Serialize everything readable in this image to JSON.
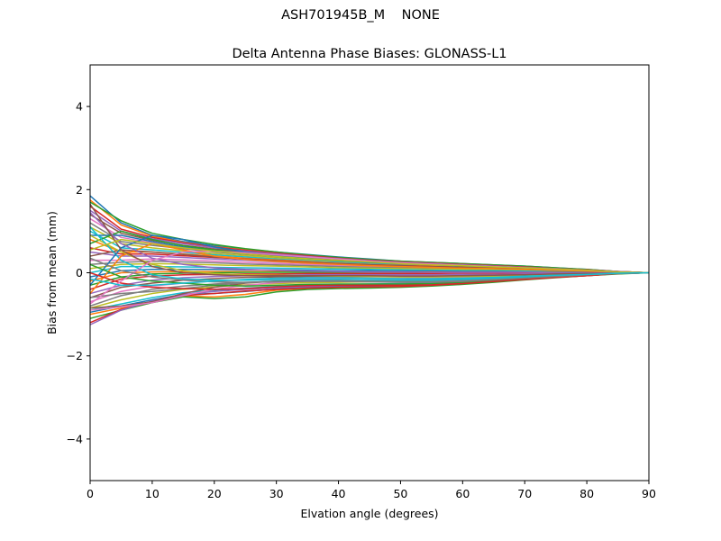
{
  "figure": {
    "suptitle": "ASH701945B_M    NONE"
  },
  "chart_data": {
    "type": "line",
    "title": "Delta Antenna Phase Biases: GLONASS-L1",
    "xlabel": "Elvation angle (degrees)",
    "ylabel": "Bias from mean (mm)",
    "xlim": [
      0,
      90
    ],
    "ylim": [
      -5,
      5
    ],
    "xticks": [
      0,
      10,
      20,
      30,
      40,
      50,
      60,
      70,
      80,
      90
    ],
    "yticks": [
      -4,
      -2,
      0,
      2,
      4
    ],
    "xtick_labels": [
      "0",
      "10",
      "20",
      "30",
      "40",
      "50",
      "60",
      "70",
      "80",
      "90"
    ],
    "ytick_labels": [
      "−4",
      "−2",
      "0",
      "2",
      "4"
    ],
    "grid": false,
    "x": [
      0,
      5,
      10,
      15,
      20,
      25,
      30,
      35,
      40,
      45,
      50,
      55,
      60,
      65,
      70,
      75,
      80,
      85,
      90
    ],
    "colors": [
      "#1f77b4",
      "#ff7f0e",
      "#2ca02c",
      "#d62728",
      "#9467bd",
      "#8c564b",
      "#e377c2",
      "#7f7f7f",
      "#bcbd22",
      "#17becf"
    ],
    "series": [
      {
        "values": [
          1.85,
          1.2,
          0.9,
          0.75,
          0.65,
          0.57,
          0.5,
          0.44,
          0.38,
          0.33,
          0.28,
          0.25,
          0.22,
          0.19,
          0.16,
          0.12,
          0.08,
          0.03,
          0.0
        ]
      },
      {
        "values": [
          1.75,
          1.15,
          0.88,
          0.73,
          0.63,
          0.55,
          0.48,
          0.42,
          0.36,
          0.31,
          0.27,
          0.24,
          0.21,
          0.18,
          0.15,
          0.11,
          0.07,
          0.03,
          0.0
        ]
      },
      {
        "values": [
          1.7,
          1.25,
          0.95,
          0.8,
          0.68,
          0.58,
          0.5,
          0.43,
          0.37,
          0.32,
          0.28,
          0.25,
          0.22,
          0.19,
          0.16,
          0.12,
          0.08,
          0.03,
          0.0
        ]
      },
      {
        "values": [
          1.6,
          1.05,
          0.85,
          0.72,
          0.62,
          0.54,
          0.47,
          0.41,
          0.35,
          0.3,
          0.26,
          0.23,
          0.2,
          0.17,
          0.14,
          0.1,
          0.07,
          0.03,
          0.0
        ]
      },
      {
        "values": [
          1.5,
          1.0,
          0.82,
          0.7,
          0.6,
          0.52,
          0.45,
          0.39,
          0.34,
          0.29,
          0.25,
          0.22,
          0.19,
          0.16,
          0.13,
          0.1,
          0.06,
          0.03,
          0.0
        ]
      },
      {
        "values": [
          1.4,
          0.95,
          0.78,
          0.66,
          0.57,
          0.5,
          0.43,
          0.37,
          0.32,
          0.28,
          0.24,
          0.21,
          0.18,
          0.15,
          0.12,
          0.09,
          0.06,
          0.02,
          0.0
        ]
      },
      {
        "values": [
          1.3,
          0.85,
          0.72,
          0.62,
          0.54,
          0.47,
          0.41,
          0.35,
          0.3,
          0.26,
          0.22,
          0.2,
          0.17,
          0.14,
          0.12,
          0.09,
          0.06,
          0.02,
          0.0
        ]
      },
      {
        "values": [
          1.2,
          0.75,
          0.66,
          0.58,
          0.5,
          0.44,
          0.38,
          0.33,
          0.28,
          0.24,
          0.21,
          0.19,
          0.16,
          0.14,
          0.11,
          0.08,
          0.05,
          0.02,
          0.0
        ]
      },
      {
        "values": [
          1.1,
          0.7,
          0.6,
          0.53,
          0.46,
          0.41,
          0.36,
          0.31,
          0.27,
          0.23,
          0.2,
          0.18,
          0.15,
          0.13,
          0.11,
          0.08,
          0.05,
          0.02,
          0.0
        ]
      },
      {
        "values": [
          1.0,
          0.6,
          0.55,
          0.49,
          0.43,
          0.38,
          0.33,
          0.29,
          0.25,
          0.22,
          0.19,
          0.17,
          0.14,
          0.12,
          0.1,
          0.07,
          0.05,
          0.02,
          0.0
        ]
      },
      {
        "values": [
          0.9,
          0.9,
          0.75,
          0.62,
          0.52,
          0.45,
          0.39,
          0.34,
          0.29,
          0.25,
          0.22,
          0.19,
          0.17,
          0.14,
          0.12,
          0.09,
          0.06,
          0.02,
          0.0
        ]
      },
      {
        "values": [
          0.8,
          0.5,
          0.5,
          0.45,
          0.4,
          0.35,
          0.31,
          0.27,
          0.23,
          0.2,
          0.18,
          0.16,
          0.13,
          0.11,
          0.09,
          0.07,
          0.04,
          0.02,
          0.0
        ]
      },
      {
        "values": [
          0.7,
          1.0,
          0.8,
          0.65,
          0.55,
          0.47,
          0.41,
          0.35,
          0.3,
          0.26,
          0.23,
          0.2,
          0.17,
          0.15,
          0.12,
          0.09,
          0.06,
          0.02,
          0.0
        ]
      },
      {
        "values": [
          0.6,
          0.45,
          0.45,
          0.41,
          0.37,
          0.33,
          0.29,
          0.25,
          0.22,
          0.19,
          0.17,
          0.15,
          0.13,
          0.11,
          0.09,
          0.06,
          0.04,
          0.02,
          0.0
        ]
      },
      {
        "values": [
          0.5,
          0.4,
          0.4,
          0.37,
          0.33,
          0.3,
          0.26,
          0.23,
          0.2,
          0.18,
          0.16,
          0.14,
          0.12,
          0.1,
          0.08,
          0.06,
          0.04,
          0.02,
          0.0
        ]
      },
      {
        "values": [
          0.4,
          0.55,
          0.5,
          0.44,
          0.38,
          0.33,
          0.29,
          0.25,
          0.22,
          0.19,
          0.17,
          0.15,
          0.13,
          0.11,
          0.09,
          0.06,
          0.04,
          0.02,
          0.0
        ]
      },
      {
        "values": [
          0.3,
          0.3,
          0.33,
          0.31,
          0.28,
          0.25,
          0.22,
          0.2,
          0.17,
          0.15,
          0.13,
          0.12,
          0.1,
          0.09,
          0.07,
          0.05,
          0.03,
          0.01,
          0.0
        ]
      },
      {
        "values": [
          0.2,
          0.25,
          0.28,
          0.26,
          0.24,
          0.21,
          0.19,
          0.17,
          0.15,
          0.13,
          0.12,
          0.1,
          0.09,
          0.08,
          0.06,
          0.05,
          0.03,
          0.01,
          0.0
        ]
      },
      {
        "values": [
          0.1,
          0.2,
          0.22,
          0.21,
          0.19,
          0.17,
          0.16,
          0.14,
          0.12,
          0.11,
          0.1,
          0.09,
          0.08,
          0.07,
          0.05,
          0.04,
          0.03,
          0.01,
          0.0
        ]
      },
      {
        "values": [
          0.0,
          0.15,
          0.15,
          0.14,
          0.13,
          0.12,
          0.11,
          0.1,
          0.09,
          0.08,
          0.07,
          0.06,
          0.05,
          0.05,
          0.04,
          0.03,
          0.02,
          0.01,
          0.0
        ]
      },
      {
        "values": [
          -0.1,
          0.05,
          0.08,
          0.08,
          0.08,
          0.07,
          0.07,
          0.06,
          0.05,
          0.05,
          0.04,
          0.04,
          0.03,
          0.03,
          0.02,
          0.02,
          0.01,
          0.0,
          0.0
        ]
      },
      {
        "values": [
          -0.2,
          0.0,
          0.02,
          0.03,
          0.03,
          0.03,
          0.03,
          0.03,
          0.02,
          0.02,
          0.02,
          0.02,
          0.01,
          0.01,
          0.01,
          0.01,
          0.0,
          0.0,
          0.0
        ]
      },
      {
        "values": [
          -0.3,
          -0.1,
          -0.03,
          -0.01,
          0.0,
          0.01,
          0.01,
          0.01,
          0.01,
          0.01,
          0.01,
          0.0,
          0.0,
          0.0,
          0.0,
          0.0,
          0.0,
          0.0,
          0.0
        ]
      },
      {
        "values": [
          -0.4,
          -0.15,
          -0.08,
          -0.05,
          -0.04,
          -0.03,
          -0.03,
          -0.02,
          -0.02,
          -0.02,
          -0.02,
          -0.02,
          -0.01,
          -0.01,
          -0.01,
          -0.01,
          0.0,
          0.0,
          0.0
        ]
      },
      {
        "values": [
          -0.5,
          -0.3,
          -0.18,
          -0.12,
          -0.09,
          -0.07,
          -0.06,
          -0.05,
          -0.05,
          -0.05,
          -0.05,
          -0.05,
          -0.04,
          -0.04,
          -0.03,
          -0.02,
          -0.01,
          0.0,
          0.0
        ]
      },
      {
        "values": [
          -0.6,
          -0.35,
          -0.25,
          -0.18,
          -0.14,
          -0.11,
          -0.1,
          -0.09,
          -0.09,
          -0.09,
          -0.09,
          -0.08,
          -0.07,
          -0.06,
          -0.05,
          -0.03,
          -0.02,
          -0.01,
          0.0
        ]
      },
      {
        "values": [
          -0.7,
          -0.45,
          -0.32,
          -0.25,
          -0.2,
          -0.17,
          -0.15,
          -0.14,
          -0.13,
          -0.13,
          -0.13,
          -0.12,
          -0.11,
          -0.09,
          -0.07,
          -0.05,
          -0.03,
          -0.01,
          0.0
        ]
      },
      {
        "values": [
          -0.8,
          -0.55,
          -0.4,
          -0.32,
          -0.27,
          -0.23,
          -0.21,
          -0.19,
          -0.18,
          -0.18,
          -0.17,
          -0.16,
          -0.14,
          -0.12,
          -0.09,
          -0.06,
          -0.04,
          -0.01,
          0.0
        ]
      },
      {
        "values": [
          -0.85,
          -0.65,
          -0.5,
          -0.4,
          -0.34,
          -0.29,
          -0.26,
          -0.24,
          -0.23,
          -0.22,
          -0.21,
          -0.19,
          -0.17,
          -0.14,
          -0.11,
          -0.08,
          -0.05,
          -0.02,
          0.0
        ]
      },
      {
        "values": [
          -0.9,
          -0.75,
          -0.6,
          -0.48,
          -0.42,
          -0.37,
          -0.33,
          -0.3,
          -0.28,
          -0.27,
          -0.26,
          -0.24,
          -0.21,
          -0.17,
          -0.13,
          -0.09,
          -0.06,
          -0.02,
          0.0
        ]
      },
      {
        "values": [
          -0.95,
          -0.8,
          -0.65,
          -0.52,
          -0.5,
          -0.45,
          -0.39,
          -0.35,
          -0.33,
          -0.31,
          -0.3,
          -0.28,
          -0.24,
          -0.2,
          -0.15,
          -0.1,
          -0.06,
          -0.02,
          0.0
        ]
      },
      {
        "values": [
          -1.0,
          -0.85,
          -0.7,
          -0.56,
          -0.58,
          -0.52,
          -0.42,
          -0.38,
          -0.36,
          -0.35,
          -0.33,
          -0.3,
          -0.26,
          -0.21,
          -0.16,
          -0.11,
          -0.07,
          -0.02,
          0.0
        ]
      },
      {
        "values": [
          -1.1,
          -0.9,
          -0.72,
          -0.58,
          -0.62,
          -0.58,
          -0.46,
          -0.4,
          -0.38,
          -0.37,
          -0.35,
          -0.32,
          -0.28,
          -0.23,
          -0.17,
          -0.12,
          -0.07,
          -0.03,
          0.0
        ]
      },
      {
        "values": [
          -1.2,
          -0.88,
          -0.7,
          -0.55,
          -0.5,
          -0.44,
          -0.4,
          -0.37,
          -0.35,
          -0.34,
          -0.33,
          -0.3,
          -0.26,
          -0.21,
          -0.16,
          -0.11,
          -0.07,
          -0.02,
          0.0
        ]
      },
      {
        "values": [
          -1.25,
          -0.9,
          -0.68,
          -0.52,
          -0.45,
          -0.4,
          -0.36,
          -0.33,
          -0.31,
          -0.3,
          -0.29,
          -0.27,
          -0.23,
          -0.19,
          -0.15,
          -0.1,
          -0.06,
          -0.02,
          0.0
        ]
      },
      {
        "values": [
          -0.85,
          -0.8,
          -0.7,
          -0.5,
          -0.35,
          -0.25,
          -0.2,
          -0.17,
          -0.16,
          -0.17,
          -0.18,
          -0.18,
          -0.16,
          -0.13,
          -0.1,
          -0.07,
          -0.04,
          -0.01,
          0.0
        ]
      },
      {
        "values": [
          -0.9,
          -0.82,
          -0.72,
          -0.55,
          -0.4,
          -0.3,
          -0.24,
          -0.2,
          -0.19,
          -0.2,
          -0.22,
          -0.22,
          -0.19,
          -0.15,
          -0.11,
          -0.08,
          -0.05,
          -0.02,
          0.0
        ]
      },
      {
        "values": [
          -0.6,
          -0.5,
          -0.45,
          -0.38,
          -0.3,
          -0.24,
          -0.2,
          -0.18,
          -0.18,
          -0.19,
          -0.2,
          -0.2,
          -0.18,
          -0.15,
          -0.11,
          -0.08,
          -0.05,
          -0.02,
          0.0
        ]
      },
      {
        "values": [
          0.9,
          0.5,
          0.2,
          0.05,
          -0.02,
          -0.05,
          -0.06,
          -0.07,
          -0.08,
          -0.09,
          -0.1,
          -0.1,
          -0.09,
          -0.08,
          -0.06,
          -0.04,
          -0.03,
          -0.01,
          0.0
        ]
      },
      {
        "values": [
          1.1,
          0.3,
          -0.05,
          -0.15,
          -0.18,
          -0.18,
          -0.17,
          -0.16,
          -0.16,
          -0.17,
          -0.18,
          -0.18,
          -0.16,
          -0.13,
          -0.1,
          -0.07,
          -0.04,
          -0.01,
          0.0
        ]
      },
      {
        "values": [
          -0.3,
          0.6,
          0.9,
          0.8,
          0.62,
          0.5,
          0.42,
          0.36,
          0.31,
          0.27,
          0.23,
          0.2,
          0.18,
          0.15,
          0.12,
          0.09,
          0.06,
          0.02,
          0.0
        ]
      },
      {
        "values": [
          -0.5,
          0.4,
          0.7,
          0.55,
          0.4,
          0.32,
          0.27,
          0.23,
          0.2,
          0.17,
          0.15,
          0.13,
          0.11,
          0.1,
          0.08,
          0.06,
          0.04,
          0.01,
          0.0
        ]
      },
      {
        "values": [
          0.2,
          -0.1,
          -0.2,
          -0.25,
          -0.3,
          -0.32,
          -0.3,
          -0.28,
          -0.27,
          -0.27,
          -0.27,
          -0.26,
          -0.23,
          -0.19,
          -0.14,
          -0.1,
          -0.06,
          -0.02,
          0.0
        ]
      },
      {
        "values": [
          0.0,
          -0.25,
          -0.35,
          -0.38,
          -0.4,
          -0.38,
          -0.34,
          -0.31,
          -0.3,
          -0.3,
          -0.3,
          -0.29,
          -0.26,
          -0.21,
          -0.16,
          -0.11,
          -0.07,
          -0.02,
          0.0
        ]
      },
      {
        "values": [
          1.45,
          0.7,
          0.35,
          0.2,
          0.12,
          0.08,
          0.06,
          0.04,
          0.03,
          0.02,
          0.02,
          0.01,
          0.01,
          0.01,
          0.01,
          0.0,
          0.0,
          0.0,
          0.0
        ]
      },
      {
        "values": [
          1.65,
          0.55,
          0.15,
          0.0,
          -0.05,
          -0.07,
          -0.07,
          -0.07,
          -0.07,
          -0.07,
          -0.08,
          -0.08,
          -0.07,
          -0.06,
          -0.05,
          -0.03,
          -0.02,
          -0.01,
          0.0
        ]
      },
      {
        "values": [
          -0.75,
          -0.2,
          0.3,
          0.5,
          0.52,
          0.48,
          0.43,
          0.38,
          0.33,
          0.28,
          0.24,
          0.21,
          0.18,
          0.15,
          0.12,
          0.09,
          0.06,
          0.02,
          0.0
        ]
      },
      {
        "values": [
          0.35,
          0.05,
          -0.1,
          -0.18,
          -0.22,
          -0.23,
          -0.22,
          -0.21,
          -0.21,
          -0.22,
          -0.23,
          -0.23,
          -0.21,
          -0.17,
          -0.13,
          -0.09,
          -0.05,
          -0.02,
          0.0
        ]
      },
      {
        "values": [
          0.55,
          0.8,
          0.7,
          0.6,
          0.52,
          0.45,
          0.39,
          0.34,
          0.3,
          0.26,
          0.22,
          0.19,
          0.17,
          0.14,
          0.12,
          0.09,
          0.06,
          0.02,
          0.0
        ]
      },
      {
        "values": [
          -0.15,
          -0.3,
          -0.3,
          -0.25,
          -0.2,
          -0.16,
          -0.13,
          -0.12,
          -0.12,
          -0.13,
          -0.14,
          -0.14,
          -0.13,
          -0.11,
          -0.08,
          -0.06,
          -0.04,
          -0.01,
          0.0
        ]
      }
    ]
  }
}
